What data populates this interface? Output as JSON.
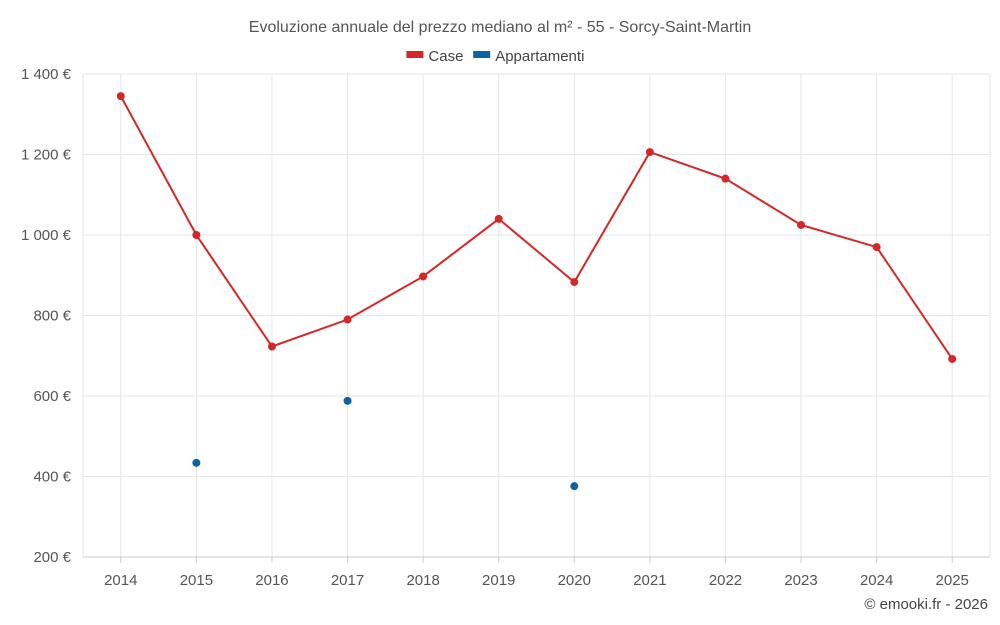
{
  "chart_data": {
    "type": "line",
    "title": "Evoluzione annuale del prezzo mediano al m² - 55 - Sorcy-Saint-Martin",
    "categories": [
      "2014",
      "2015",
      "2016",
      "2017",
      "2018",
      "2019",
      "2020",
      "2021",
      "2022",
      "2023",
      "2024",
      "2025"
    ],
    "series": [
      {
        "name": "Case",
        "color": "#d62728",
        "values": [
          1345,
          1000,
          723,
          790,
          897,
          1040,
          883,
          1206,
          1140,
          1025,
          970,
          692
        ]
      },
      {
        "name": "Appartamenti",
        "color": "#0b62a4",
        "values": [
          null,
          434,
          null,
          588,
          null,
          null,
          376,
          null,
          null,
          null,
          null,
          null
        ]
      }
    ],
    "ylim": [
      200,
      1400
    ],
    "yticks": [
      200,
      400,
      600,
      800,
      1000,
      1200,
      1400
    ],
    "ytick_labels": [
      "200 €",
      "400 €",
      "600 €",
      "800 €",
      "1 000 €",
      "1 200 €",
      "1 400 €"
    ],
    "xlabel": "",
    "ylabel": "",
    "grid": true,
    "legend_position": "top-center"
  },
  "credit": "© emooki.fr - 2026"
}
